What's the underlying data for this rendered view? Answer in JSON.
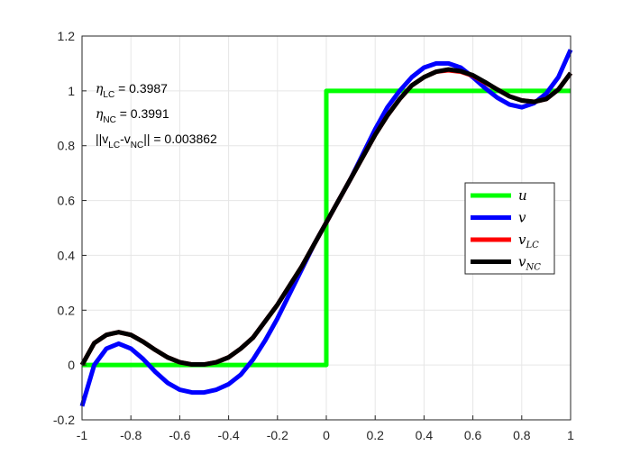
{
  "chart_data": {
    "type": "line",
    "title": "",
    "xlabel": "",
    "ylabel": "",
    "xlim": [
      -1,
      1
    ],
    "ylim": [
      -0.2,
      1.2
    ],
    "grid": true,
    "legend_position": "right",
    "x_ticks": [
      "-1",
      "-0.8",
      "-0.6",
      "-0.4",
      "-0.2",
      "0",
      "0.2",
      "0.4",
      "0.6",
      "0.8",
      "1"
    ],
    "y_ticks": [
      "-0.2",
      "0",
      "0.2",
      "0.4",
      "0.6",
      "0.8",
      "1",
      "1.2"
    ],
    "annotations": {
      "eta_lc": {
        "symbol": "η",
        "sub": "LC",
        "value": " = 0.3987"
      },
      "eta_nc": {
        "symbol": "η",
        "sub": "NC",
        "value": " = 0.3991"
      },
      "norm": {
        "part1": "||v",
        "sub1": "LC",
        "part2": "-v",
        "sub2": "NC",
        "part3": "|| = 0.003862"
      }
    },
    "series": [
      {
        "name": "u",
        "label_main": "u",
        "label_sub": "",
        "color": "#00ff00",
        "x": [
          -1,
          0,
          0,
          1
        ],
        "y": [
          0,
          0,
          1,
          1
        ]
      },
      {
        "name": "v",
        "label_main": "v",
        "label_sub": "",
        "color": "#0000ff",
        "x": [
          -1,
          -0.95,
          -0.9,
          -0.85,
          -0.8,
          -0.75,
          -0.7,
          -0.65,
          -0.6,
          -0.55,
          -0.5,
          -0.45,
          -0.4,
          -0.35,
          -0.3,
          -0.25,
          -0.2,
          -0.15,
          -0.1,
          -0.05,
          0,
          0.05,
          0.1,
          0.15,
          0.2,
          0.25,
          0.3,
          0.35,
          0.4,
          0.45,
          0.5,
          0.55,
          0.6,
          0.65,
          0.7,
          0.75,
          0.8,
          0.85,
          0.9,
          0.95,
          1
        ],
        "y": [
          -0.15,
          0.0,
          0.06,
          0.078,
          0.06,
          0.022,
          -0.025,
          -0.065,
          -0.09,
          -0.1,
          -0.1,
          -0.09,
          -0.07,
          -0.035,
          0.02,
          0.09,
          0.17,
          0.26,
          0.35,
          0.44,
          0.52,
          0.6,
          0.68,
          0.77,
          0.86,
          0.94,
          1.0,
          1.05,
          1.085,
          1.1,
          1.1,
          1.085,
          1.05,
          1.01,
          0.975,
          0.95,
          0.94,
          0.955,
          0.99,
          1.05,
          1.15
        ]
      },
      {
        "name": "v_LC",
        "label_main": "v",
        "label_sub": "LC",
        "color": "#ff0000",
        "x": [
          -1,
          -0.95,
          -0.9,
          -0.85,
          -0.8,
          -0.75,
          -0.7,
          -0.65,
          -0.6,
          -0.55,
          -0.5,
          -0.45,
          -0.4,
          -0.35,
          -0.3,
          -0.25,
          -0.2,
          -0.15,
          -0.1,
          -0.05,
          0,
          0.05,
          0.1,
          0.15,
          0.2,
          0.25,
          0.3,
          0.35,
          0.4,
          0.45,
          0.5,
          0.55,
          0.6,
          0.65,
          0.7,
          0.75,
          0.8,
          0.85,
          0.9,
          0.95,
          1
        ],
        "y": [
          0.0,
          0.08,
          0.11,
          0.12,
          0.11,
          0.085,
          0.055,
          0.028,
          0.01,
          0.002,
          0.002,
          0.01,
          0.028,
          0.06,
          0.1,
          0.16,
          0.22,
          0.29,
          0.36,
          0.44,
          0.52,
          0.6,
          0.68,
          0.76,
          0.84,
          0.91,
          0.97,
          1.02,
          1.05,
          1.07,
          1.075,
          1.07,
          1.055,
          1.03,
          1.005,
          0.98,
          0.965,
          0.96,
          0.97,
          1.005,
          1.065
        ]
      },
      {
        "name": "v_NC",
        "label_main": "v",
        "label_sub": "NC",
        "color": "#000000",
        "x": [
          -1,
          -0.95,
          -0.9,
          -0.85,
          -0.8,
          -0.75,
          -0.7,
          -0.65,
          -0.6,
          -0.55,
          -0.5,
          -0.45,
          -0.4,
          -0.35,
          -0.3,
          -0.25,
          -0.2,
          -0.15,
          -0.1,
          -0.05,
          0,
          0.05,
          0.1,
          0.15,
          0.2,
          0.25,
          0.3,
          0.35,
          0.4,
          0.45,
          0.5,
          0.55,
          0.6,
          0.65,
          0.7,
          0.75,
          0.8,
          0.85,
          0.9,
          0.95,
          1
        ],
        "y": [
          0.0,
          0.08,
          0.11,
          0.12,
          0.11,
          0.085,
          0.055,
          0.028,
          0.01,
          0.002,
          0.002,
          0.01,
          0.028,
          0.06,
          0.1,
          0.16,
          0.22,
          0.29,
          0.36,
          0.44,
          0.52,
          0.6,
          0.68,
          0.76,
          0.84,
          0.91,
          0.97,
          1.02,
          1.05,
          1.07,
          1.078,
          1.072,
          1.057,
          1.032,
          1.005,
          0.98,
          0.965,
          0.96,
          0.97,
          1.005,
          1.065
        ]
      }
    ]
  }
}
